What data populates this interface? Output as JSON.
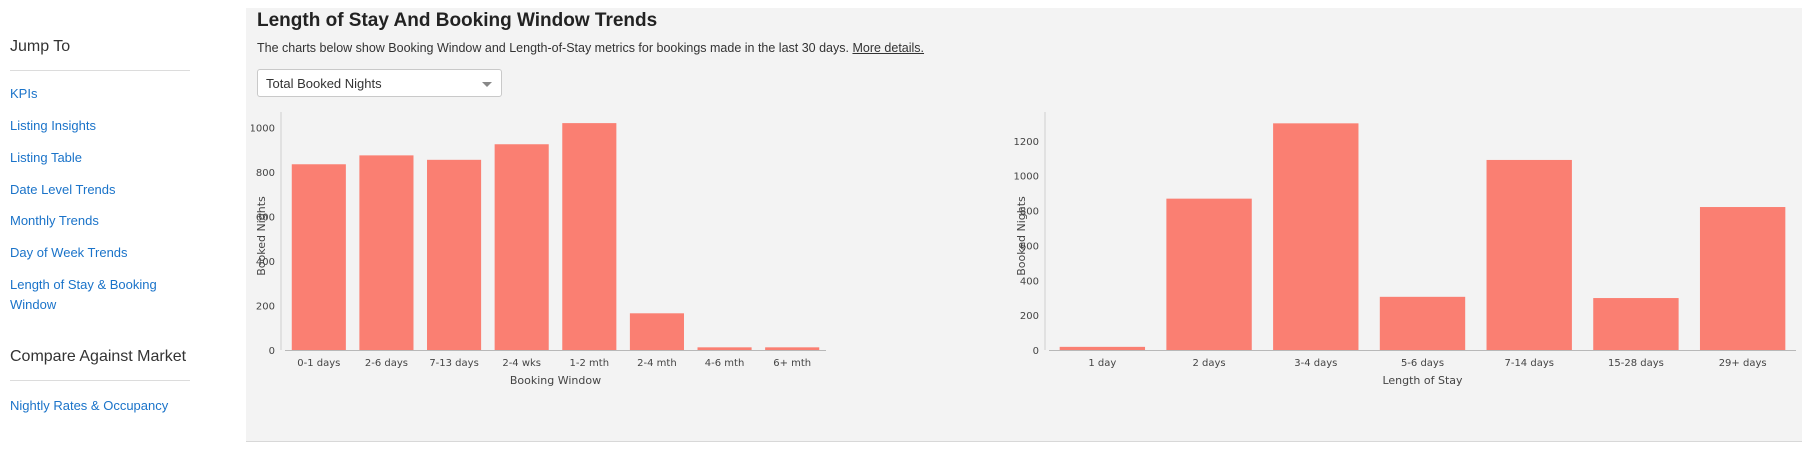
{
  "sidebar": {
    "jump_heading": "Jump To",
    "links": [
      {
        "label": "KPIs",
        "name": "sidebar-link-kpis"
      },
      {
        "label": "Listing Insights",
        "name": "sidebar-link-listing-insights"
      },
      {
        "label": "Listing Table",
        "name": "sidebar-link-listing-table"
      },
      {
        "label": "Date Level Trends",
        "name": "sidebar-link-date-level-trends"
      },
      {
        "label": "Monthly Trends",
        "name": "sidebar-link-monthly-trends"
      },
      {
        "label": "Day of Week Trends",
        "name": "sidebar-link-day-of-week-trends"
      },
      {
        "label": "Length of Stay & Booking Window",
        "name": "sidebar-link-length-of-stay"
      }
    ],
    "compare_heading": "Compare Against Market",
    "compare_links": [
      {
        "label": "Nightly Rates & Occupancy",
        "name": "sidebar-link-nightly-rates"
      }
    ]
  },
  "panel": {
    "title": "Length of Stay And Booking Window Trends",
    "subtitle": "The charts below show Booking Window and Length-of-Stay metrics for bookings made in the last 30 days.",
    "details_link": "More details.",
    "metric_select": {
      "value": "Total Booked Nights"
    }
  },
  "colors": {
    "bar": "#fa7f72",
    "link": "#1a73c9"
  },
  "chart_data": [
    {
      "type": "bar",
      "xlabel": "Booking Window",
      "ylabel": "Booked Nights",
      "categories": [
        "0-1 days",
        "2-6 days",
        "7-13 days",
        "2-4 wks",
        "1-2 mth",
        "2-4 mth",
        "4-6 mth",
        "6+ mth"
      ],
      "values": [
        835,
        875,
        855,
        925,
        1020,
        165,
        12,
        12
      ],
      "ylim": [
        0,
        1070
      ],
      "yticks": [
        0,
        200,
        400,
        600,
        800,
        1000
      ],
      "grid": false
    },
    {
      "type": "bar",
      "xlabel": "Length of Stay",
      "ylabel": "Booked Nights",
      "categories": [
        "1 day",
        "2 days",
        "3-4 days",
        "5-6 days",
        "7-14 days",
        "15-28 days",
        "29+ days"
      ],
      "values": [
        18,
        868,
        1300,
        305,
        1090,
        298,
        820
      ],
      "ylim": [
        0,
        1365
      ],
      "yticks": [
        0,
        200,
        400,
        600,
        800,
        1000,
        1200
      ],
      "grid": false
    }
  ]
}
